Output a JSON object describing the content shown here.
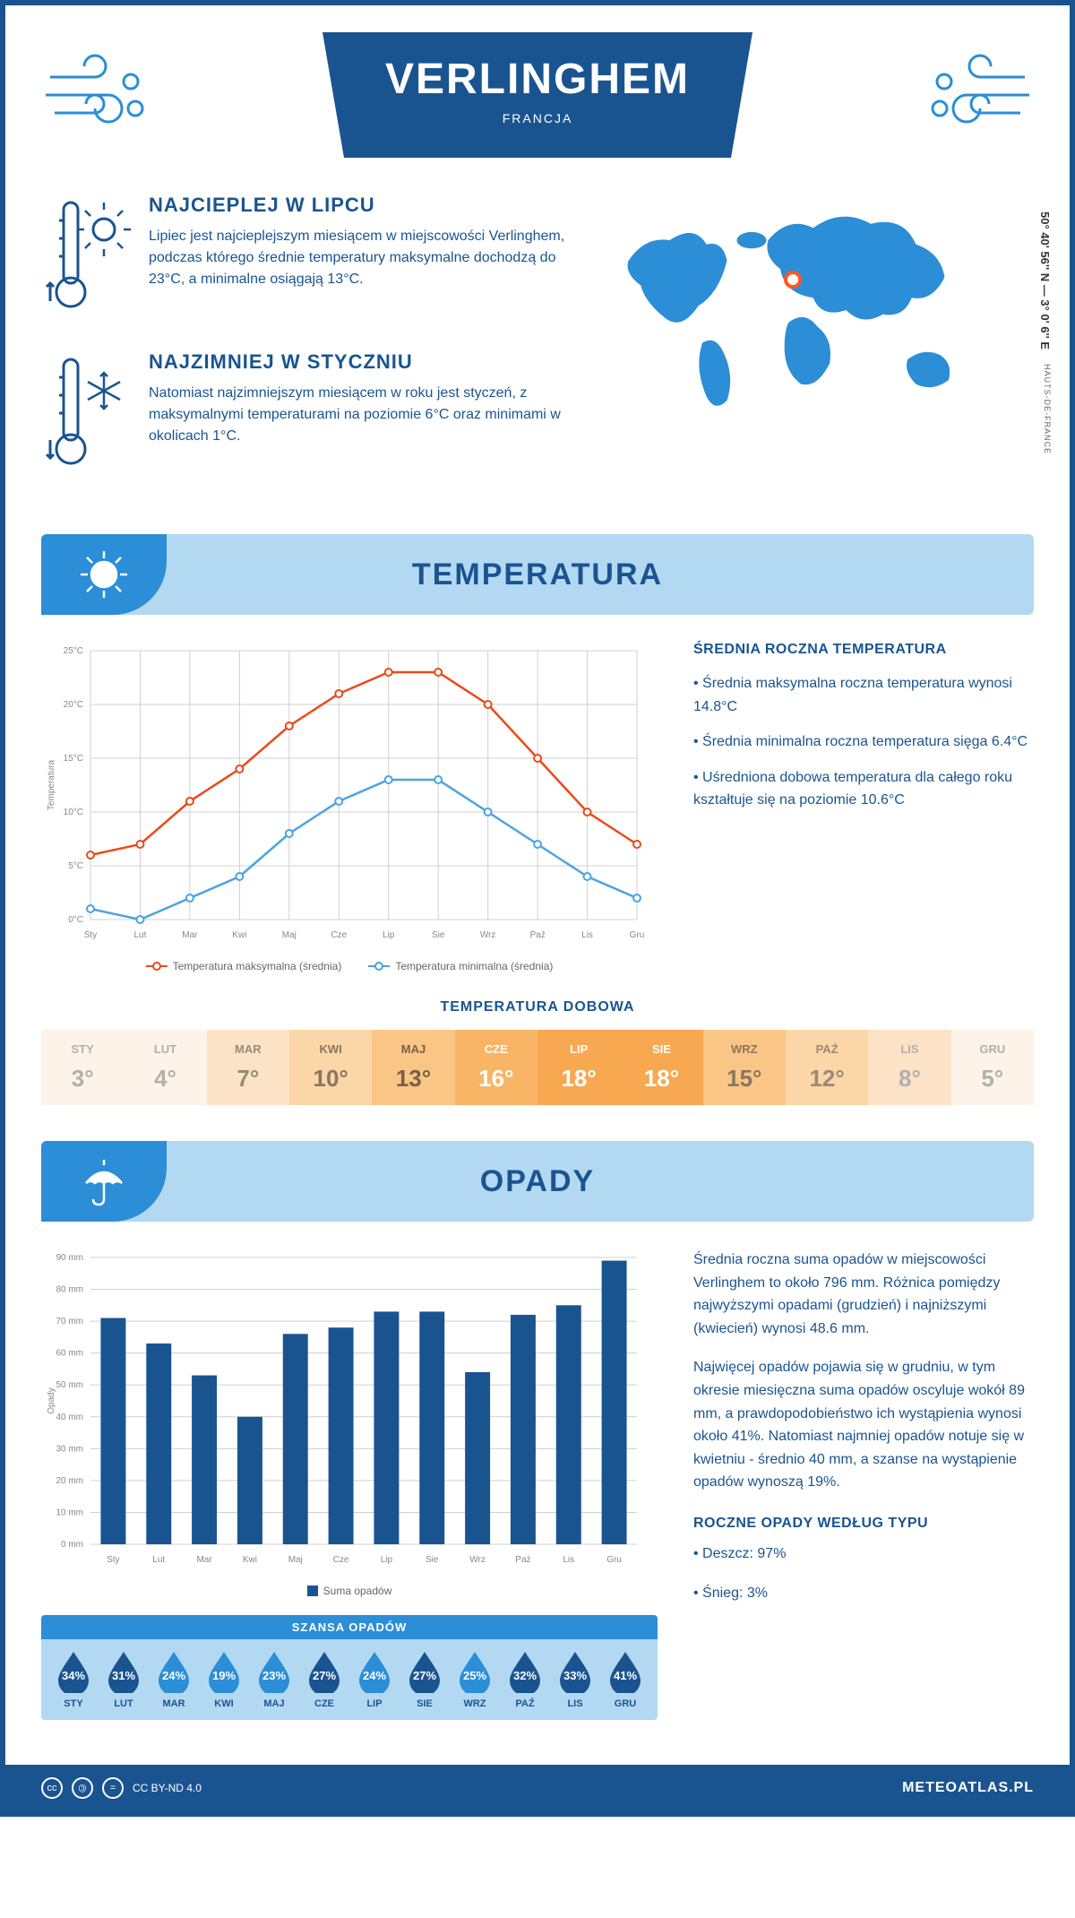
{
  "header": {
    "title": "VERLINGHEM",
    "subtitle": "FRANCJA"
  },
  "coords": "50° 40' 56'' N — 3° 0' 6'' E",
  "region": "HAUTS-DE-FRANCE",
  "map_marker": {
    "left_pct": 48,
    "top_pct": 37
  },
  "colors": {
    "primary": "#1a5490",
    "light": "#b3d9f2",
    "mid": "#2b8ed6",
    "line_max": "#e84c1a",
    "line_min": "#4ba3e3",
    "bar": "#1a5490",
    "grid": "#d0d0d0"
  },
  "warmest": {
    "title": "NAJCIEPLEJ W LIPCU",
    "text": "Lipiec jest najcieplejszym miesiącem w miejscowości Verlinghem, podczas którego średnie temperatury maksymalne dochodzą do 23°C, a minimalne osiągają 13°C."
  },
  "coldest": {
    "title": "NAJZIMNIEJ W STYCZNIU",
    "text": "Natomiast najzimniejszym miesiącem w roku jest styczeń, z maksymalnymi temperaturami na poziomie 6°C oraz minimami w okolicach 1°C."
  },
  "months": [
    "Sty",
    "Lut",
    "Mar",
    "Kwi",
    "Maj",
    "Cze",
    "Lip",
    "Sie",
    "Wrz",
    "Paź",
    "Lis",
    "Gru"
  ],
  "months_upper": [
    "STY",
    "LUT",
    "MAR",
    "KWI",
    "MAJ",
    "CZE",
    "LIP",
    "SIE",
    "WRZ",
    "PAŹ",
    "LIS",
    "GRU"
  ],
  "section_temp": "TEMPERATURA",
  "section_precip": "OPADY",
  "temp_chart": {
    "y_label": "Temperatura",
    "y_ticks": [
      "0°C",
      "5°C",
      "10°C",
      "15°C",
      "20°C",
      "25°C"
    ],
    "y_min": 0,
    "y_max": 25,
    "max_series": [
      6,
      7,
      11,
      14,
      18,
      21,
      23,
      23,
      20,
      15,
      10,
      7
    ],
    "min_series": [
      1,
      0,
      2,
      4,
      8,
      11,
      13,
      13,
      10,
      7,
      4,
      2
    ],
    "legend_max": "Temperatura maksymalna (średnia)",
    "legend_min": "Temperatura minimalna (średnia)"
  },
  "temp_summary": {
    "title": "ŚREDNIA ROCZNA TEMPERATURA",
    "b1": "• Średnia maksymalna roczna temperatura wynosi 14.8°C",
    "b2": "• Średnia minimalna roczna temperatura sięga 6.4°C",
    "b3": "• Uśredniona dobowa temperatura dla całego roku kształtuje się na poziomie 10.6°C"
  },
  "daily": {
    "title": "TEMPERATURA DOBOWA",
    "values": [
      "3°",
      "4°",
      "7°",
      "10°",
      "13°",
      "16°",
      "18°",
      "18°",
      "15°",
      "12°",
      "8°",
      "5°"
    ],
    "bg": [
      "#fdf3e8",
      "#fdf3e8",
      "#fce3c6",
      "#fbd6a6",
      "#f9c686",
      "#f8b566",
      "#f7a850",
      "#f7a850",
      "#f9c686",
      "#fbd6a6",
      "#fce3c6",
      "#fdf3e8"
    ],
    "fg": [
      "#b0b0b0",
      "#b0b0b0",
      "#9a8a78",
      "#8a7560",
      "#7a6048",
      "#ffffff",
      "#ffffff",
      "#ffffff",
      "#8a7560",
      "#9a8a78",
      "#b0b0b0",
      "#b0b0b0"
    ]
  },
  "precip_chart": {
    "y_label": "Opady",
    "y_ticks": [
      0,
      10,
      20,
      30,
      40,
      50,
      60,
      70,
      80,
      90
    ],
    "y_max": 90,
    "values": [
      71,
      63,
      53,
      40,
      66,
      68,
      73,
      73,
      54,
      72,
      75,
      89
    ],
    "legend": "Suma opadów"
  },
  "precip_text": {
    "p1": "Średnia roczna suma opadów w miejscowości Verlinghem to około 796 mm. Różnica pomiędzy najwyższymi opadami (grudzień) i najniższymi (kwiecień) wynosi 48.6 mm.",
    "p2": "Najwięcej opadów pojawia się w grudniu, w tym okresie miesięczna suma opadów oscyluje wokół 89 mm, a prawdopodobieństwo ich wystąpienia wynosi około 41%. Natomiast najmniej opadów notuje się w kwietniu - średnio 40 mm, a szanse na wystąpienie opadów wynoszą 19%.",
    "type_title": "ROCZNE OPADY WEDŁUG TYPU",
    "rain": "• Deszcz: 97%",
    "snow": "• Śnieg: 3%"
  },
  "chance": {
    "title": "SZANSA OPADÓW",
    "values": [
      "34%",
      "31%",
      "24%",
      "19%",
      "23%",
      "27%",
      "24%",
      "27%",
      "25%",
      "32%",
      "33%",
      "41%"
    ],
    "drop_colors": [
      "#1a5490",
      "#1a5490",
      "#2b8ed6",
      "#2b8ed6",
      "#2b8ed6",
      "#1a5490",
      "#2b8ed6",
      "#1a5490",
      "#2b8ed6",
      "#1a5490",
      "#1a5490",
      "#1a5490"
    ]
  },
  "footer": {
    "license": "CC BY-ND 4.0",
    "site": "METEOATLAS.PL"
  }
}
